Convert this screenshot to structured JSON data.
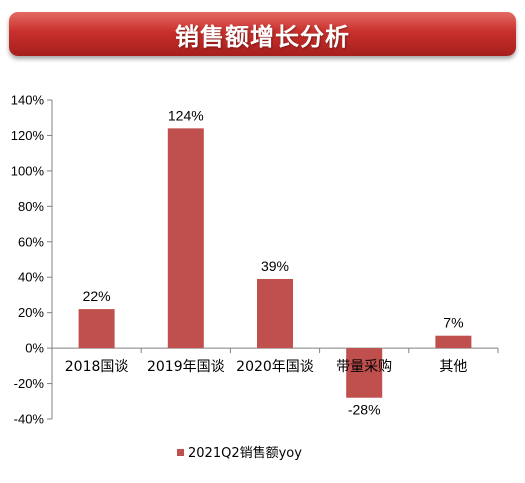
{
  "banner": {
    "title": "销售额增长分析"
  },
  "colors": {
    "bar": "#c0504d",
    "banner": "#c9302c"
  },
  "chart_data": {
    "type": "bar",
    "categories": [
      "2018国谈",
      "2019年国谈",
      "2020年国谈",
      "带量采购",
      "其他"
    ],
    "series": [
      {
        "name": "2021Q2销售额yoy",
        "values": [
          22,
          124,
          39,
          -28,
          7
        ]
      }
    ],
    "data_labels": [
      "22%",
      "124%",
      "39%",
      "-28%",
      "7%"
    ],
    "y_ticks": [
      -40,
      -20,
      0,
      20,
      40,
      60,
      80,
      100,
      120,
      140
    ],
    "y_tick_labels": [
      "-40%",
      "-20%",
      "0%",
      "20%",
      "40%",
      "60%",
      "80%",
      "100%",
      "120%",
      "140%"
    ],
    "ylim": [
      -40,
      140
    ],
    "grid": false,
    "legend_position": "bottom"
  }
}
